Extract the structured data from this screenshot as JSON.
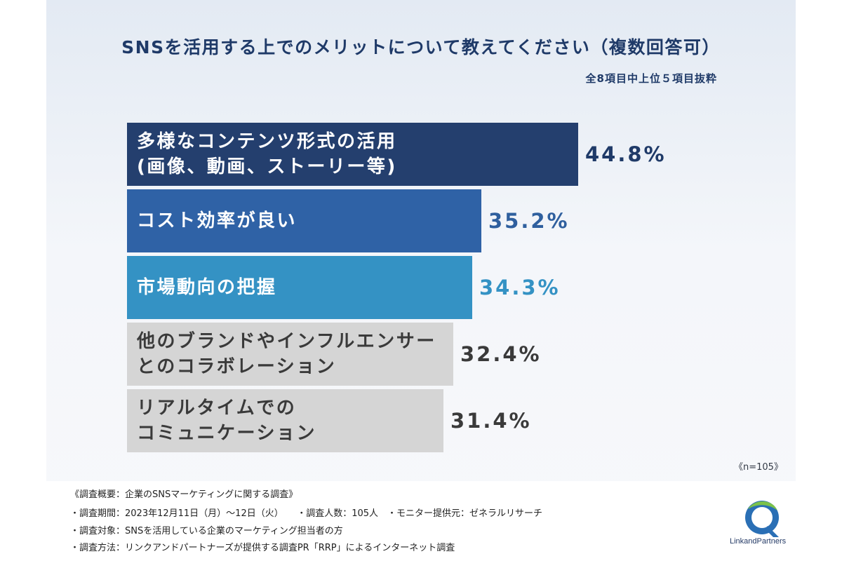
{
  "header": {
    "title": "SNSを活用する上でのメリットについて教えてください（複数回答可）",
    "subtitle": "全8項目中上位５項目抜粋"
  },
  "chart_data": {
    "type": "bar",
    "orientation": "horizontal",
    "categories": [
      "多様なコンテンツ形式の活用\n(画像、動画、ストーリー等)",
      "コスト効率が良い",
      "市場動向の把握",
      "他のブランドやインフルエンサー\nとのコラボレーション",
      "リアルタイムでの\nコミュニケーション"
    ],
    "values": [
      44.8,
      35.2,
      34.3,
      32.4,
      31.4
    ],
    "value_labels": [
      "44.8%",
      "35.2%",
      "34.3%",
      "32.4%",
      "31.4%"
    ],
    "bar_colors": [
      "#243f6e",
      "#2f62a6",
      "#3492c4",
      "#d5d5d5",
      "#d5d5d5"
    ],
    "label_colors": [
      "#ffffff",
      "#ffffff",
      "#ffffff",
      "#3a3a3a",
      "#3a3a3a"
    ],
    "value_colors": [
      "#1f3a68",
      "#2f5f9e",
      "#3492c4",
      "#3a3a3a",
      "#3a3a3a"
    ],
    "title": "SNSを活用する上でのメリットについて教えてください（複数回答可）",
    "xlim": [
      0,
      44.8
    ],
    "grid": false,
    "legend": "none"
  },
  "note": {
    "n": "《n=105》"
  },
  "footer": {
    "lines": [
      "《調査概要：企業のSNSマーケティングに関する調査》",
      "・調査期間：2023年12月11日（月）〜12日（火）　　・調査人数：105人　・モニター提供元：ゼネラルリサーチ",
      "・調査対象：SNSを活用している企業のマーケティング担当者の方",
      "・調査方法：リンクアンドパートナーズが提供する調査PR「RRP」によるインターネット調査"
    ]
  },
  "logo": {
    "text": "LinkandPartners",
    "icon": "link-and-partners-logo-icon"
  }
}
